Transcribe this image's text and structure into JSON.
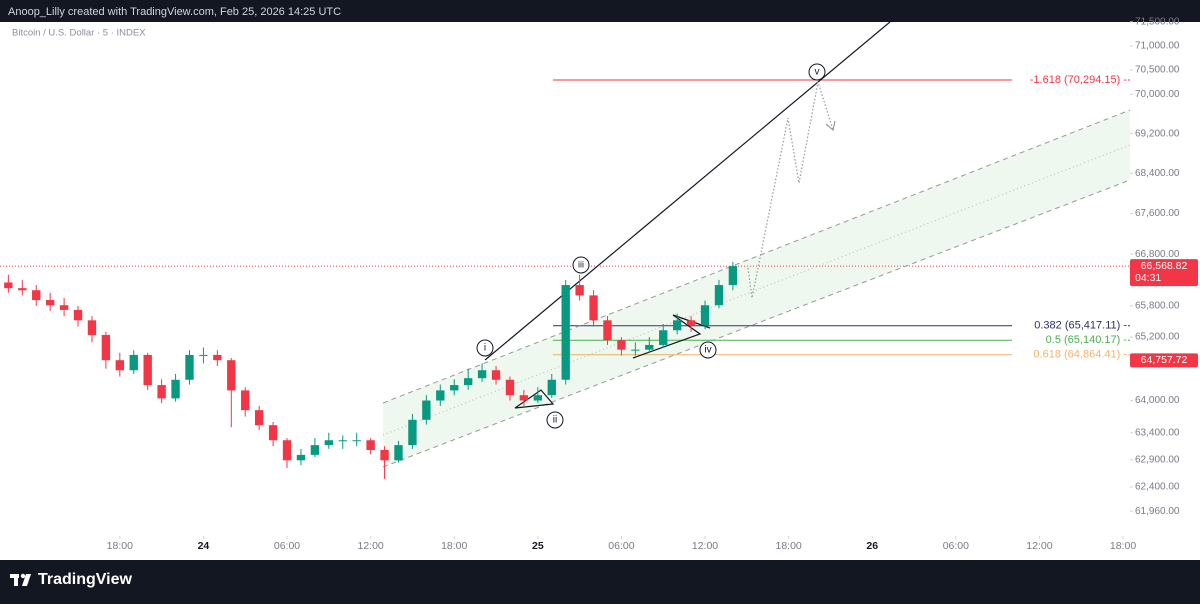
{
  "header": "Anoop_Lilly created with TradingView.com, Feb 25, 2026 14:25 UTC",
  "chart_data": {
    "type": "candlestick",
    "symbol": "Bitcoin / U.S. Dollar · 5 · INDEX",
    "x": [
      10,
      11,
      12,
      13,
      14,
      15,
      16,
      17,
      18,
      19,
      20,
      21,
      22,
      23,
      24,
      25,
      26,
      27,
      28,
      29,
      30,
      31,
      32,
      33,
      34,
      35,
      36,
      37,
      38,
      39,
      40,
      41,
      42,
      43,
      44,
      45,
      46,
      47,
      48,
      49,
      50,
      51,
      52,
      53,
      54,
      55,
      56,
      57,
      58,
      59,
      60,
      61,
      62
    ],
    "open": [
      66250,
      66140,
      66100,
      65910,
      65810,
      65720,
      65520,
      65240,
      64760,
      64570,
      64860,
      64290,
      64040,
      64390,
      64860,
      64860,
      64760,
      64190,
      63820,
      63540,
      63260,
      62890,
      62990,
      63170,
      63260,
      63260,
      63260,
      63080,
      62890,
      63170,
      63640,
      64000,
      64190,
      64290,
      64420,
      64570,
      64390,
      64100,
      64000,
      64100,
      64390,
      66200,
      66000,
      65520,
      65140,
      64960,
      64960,
      65050,
      65330,
      65520,
      65430,
      65810,
      66200
    ],
    "high": [
      66400,
      66300,
      66200,
      66050,
      65950,
      65800,
      65600,
      65300,
      64900,
      64950,
      64900,
      64400,
      64500,
      64950,
      65000,
      64950,
      64800,
      64250,
      63900,
      63600,
      63300,
      63100,
      63300,
      63400,
      63350,
      63400,
      63300,
      63150,
      63250,
      63750,
      64100,
      64300,
      64400,
      64600,
      64700,
      64650,
      64450,
      64200,
      64250,
      64500,
      66300,
      66400,
      66100,
      65600,
      65200,
      65100,
      65200,
      65450,
      65650,
      65600,
      65900,
      66300,
      66650
    ],
    "low": [
      66050,
      66000,
      65800,
      65700,
      65600,
      65400,
      65100,
      64600,
      64450,
      64500,
      64200,
      63950,
      63980,
      64300,
      64700,
      64650,
      63500,
      63700,
      63450,
      63150,
      62750,
      62800,
      62950,
      63100,
      63100,
      63150,
      63000,
      62550,
      62850,
      63100,
      63550,
      63900,
      64100,
      64200,
      64350,
      64300,
      64000,
      63900,
      63950,
      64050,
      64300,
      65900,
      65400,
      65050,
      64850,
      64850,
      64900,
      65000,
      65250,
      65300,
      65350,
      65750,
      66100
    ],
    "close": [
      66140,
      66100,
      65910,
      65810,
      65720,
      65520,
      65240,
      64760,
      64570,
      64860,
      64290,
      64040,
      64390,
      64860,
      64860,
      64760,
      64190,
      63820,
      63540,
      63260,
      62890,
      62990,
      63170,
      63260,
      63260,
      63260,
      63080,
      62890,
      63170,
      63640,
      64000,
      64190,
      64290,
      64420,
      64570,
      64390,
      64100,
      64000,
      64100,
      64390,
      66200,
      66000,
      65520,
      65140,
      64960,
      64960,
      65050,
      65330,
      65520,
      65430,
      65810,
      66200,
      66568.82
    ],
    "up_color": "#089981",
    "down_color": "#f23645",
    "xlim": [
      9.4,
      90.5
    ],
    "xticks": [
      {
        "value": 18,
        "label": "18:00"
      },
      {
        "value": 24,
        "label": "24"
      },
      {
        "value": 30,
        "label": "06:00"
      },
      {
        "value": 36,
        "label": "12:00"
      },
      {
        "value": 42,
        "label": "18:00"
      },
      {
        "value": 48,
        "label": "25"
      },
      {
        "value": 54,
        "label": "06:00"
      },
      {
        "value": 60,
        "label": "12:00"
      },
      {
        "value": 66,
        "label": "18:00"
      },
      {
        "value": 72,
        "label": "26"
      },
      {
        "value": 78,
        "label": "06:00"
      },
      {
        "value": 84,
        "label": "12:00"
      },
      {
        "value": 90,
        "label": "18:00"
      }
    ],
    "ylim": [
      61530,
      71540
    ],
    "log_scale": true,
    "grid": false,
    "yticks": [
      {
        "value": 71500,
        "label": "71,500.00"
      },
      {
        "value": 71000,
        "label": "71,000.00"
      },
      {
        "value": 70500,
        "label": "70,500.00"
      },
      {
        "value": 70000,
        "label": "70,000.00"
      },
      {
        "value": 69200,
        "label": "69,200.00"
      },
      {
        "value": 68400,
        "label": "68,400.00"
      },
      {
        "value": 67600,
        "label": "67,600.00"
      },
      {
        "value": 66800,
        "label": "66,800.00"
      },
      {
        "value": 65800,
        "label": "65,800.00"
      },
      {
        "value": 65200,
        "label": "65,200.00"
      },
      {
        "value": 64000,
        "label": "64,000.00"
      },
      {
        "value": 63400,
        "label": "63,400.00"
      },
      {
        "value": 62900,
        "label": "62,900.00"
      },
      {
        "value": 62400,
        "label": "62,400.00"
      },
      {
        "value": 61960,
        "label": "61,960.00"
      }
    ],
    "last_price": {
      "value": 66568.82,
      "label": "66,568.82",
      "countdown": "04:31",
      "color": "#f23645"
    },
    "price_marker": {
      "value": 64757.72,
      "label": "64,757.72",
      "color": "#f23645"
    },
    "fib_levels": [
      {
        "value": 70294.15,
        "label": "-1.618 (70,294.15) -",
        "color": "#f23645"
      },
      {
        "value": 65417.11,
        "label": "0.382 (65,417.11) -",
        "color": "#2a2e6e"
      },
      {
        "value": 65140.17,
        "label": "0.5 (65,140.17) -",
        "color": "#4caf50"
      },
      {
        "value": 64864.41,
        "label": "0.618 (64,864.41) -",
        "color": "#f7b267"
      }
    ],
    "wave_labels": [
      "i",
      "ii",
      "iii",
      "iv",
      "v"
    ]
  },
  "footer": {
    "brand": "TradingView"
  }
}
